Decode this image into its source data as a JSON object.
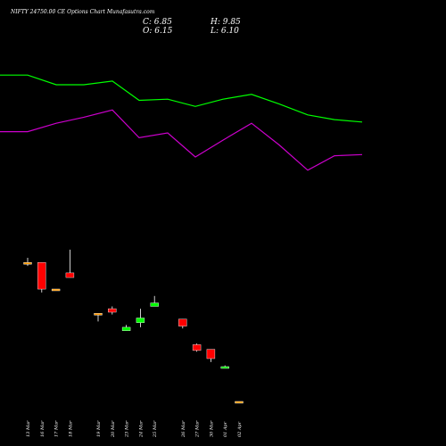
{
  "header": {
    "title": "NIFTY 24750.00  CE Options  Chart Munafasutra.com",
    "close": "C: 6.85",
    "high": "H: 9.85",
    "open": "O: 6.15",
    "low": "L: 6.10"
  },
  "colors": {
    "background": "#000000",
    "text": "#ffffff",
    "bullish": "#00ff00",
    "bearish": "#ff0000",
    "neutral": "#ff9900",
    "wick": "#ffffff",
    "green_line": "#00ff00",
    "magenta_line": "#cc00cc"
  },
  "chart_data": {
    "type": "candlestick",
    "title": "NIFTY 24750.00  CE Options  Chart Munafasutra.com",
    "categories": [
      "13 Mar",
      "16 Mar",
      "17 Mar",
      "18 Mar",
      "19 Mar",
      "20 Mar",
      "23 Mar",
      "24 Mar",
      "25 Mar",
      "26 Mar",
      "27 Mar",
      "30 Mar",
      "01 Apr",
      "02 Apr"
    ],
    "candle_x_index": [
      0,
      1,
      2,
      3,
      5,
      6,
      7,
      8,
      9,
      11,
      12,
      13,
      14,
      15
    ],
    "candles": [
      {
        "date": "13 Mar",
        "open": 120,
        "high": 124,
        "low": 117,
        "close": 120
      },
      {
        "date": "16 Mar",
        "open": 120,
        "high": 120,
        "low": 94,
        "close": 97
      },
      {
        "date": "17 Mar",
        "open": 97,
        "high": 97,
        "low": 97,
        "close": 97
      },
      {
        "date": "18 Mar",
        "open": 111,
        "high": 131,
        "low": 107,
        "close": 107
      },
      {
        "date": "19 Mar",
        "open": 76,
        "high": 76,
        "low": 69,
        "close": 76
      },
      {
        "date": "20 Mar",
        "open": 80,
        "high": 82,
        "low": 75,
        "close": 77
      },
      {
        "date": "23 Mar",
        "open": 61,
        "high": 66,
        "low": 61,
        "close": 64
      },
      {
        "date": "24 Mar",
        "open": 68,
        "high": 80,
        "low": 64,
        "close": 72
      },
      {
        "date": "25 Mar",
        "open": 82,
        "high": 91,
        "low": 82,
        "close": 85
      },
      {
        "date": "26 Mar",
        "open": 71,
        "high": 71,
        "low": 63,
        "close": 65
      },
      {
        "date": "27 Mar",
        "open": 49,
        "high": 50,
        "low": 43,
        "close": 44
      },
      {
        "date": "30 Mar",
        "open": 45,
        "high": 45,
        "low": 34,
        "close": 37
      },
      {
        "date": "01 Apr",
        "open": 29,
        "high": 31,
        "low": 29,
        "close": 30
      },
      {
        "date": "02 Apr",
        "open": 0,
        "high": 0,
        "low": 0,
        "close": 0
      }
    ],
    "lines": [
      {
        "color": "#00ff00",
        "values": [
          308,
          308,
          300,
          300,
          303,
          287,
          288,
          282,
          288,
          292,
          284,
          275,
          271,
          269
        ]
      },
      {
        "color": "#cc00cc",
        "values": [
          261,
          261,
          268,
          273,
          279,
          256,
          260,
          240,
          254,
          268,
          250,
          229,
          241,
          242
        ]
      }
    ]
  }
}
